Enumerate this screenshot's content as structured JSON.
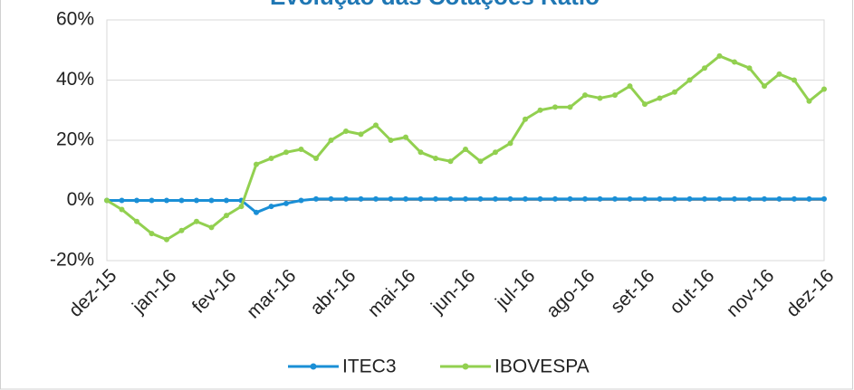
{
  "chart_data": {
    "type": "line",
    "title": "Evolução das Cotações Ratio",
    "categories": [
      "dez-15",
      null,
      null,
      null,
      "jan-16",
      null,
      null,
      null,
      "fev-16",
      null,
      null,
      null,
      "mar-16",
      null,
      null,
      null,
      "abr-16",
      null,
      null,
      null,
      "mai-16",
      null,
      null,
      null,
      "jun-16",
      null,
      null,
      null,
      "jul-16",
      null,
      null,
      null,
      "ago-16",
      null,
      null,
      null,
      "set-16",
      null,
      null,
      null,
      "out-16",
      null,
      null,
      null,
      "nov-16",
      null,
      null,
      null,
      "dez-16"
    ],
    "series": [
      {
        "name": "ITEC3",
        "color": "#1a8fd6",
        "values": [
          0,
          0,
          0,
          0,
          0,
          0,
          0,
          0,
          0,
          0,
          -4,
          -2,
          -1,
          0,
          0.5,
          0.5,
          0.5,
          0.5,
          0.5,
          0.5,
          0.5,
          0.5,
          0.5,
          0.5,
          0.5,
          0.5,
          0.5,
          0.5,
          0.5,
          0.5,
          0.5,
          0.5,
          0.5,
          0.5,
          0.5,
          0.5,
          0.5,
          0.5,
          0.5,
          0.5,
          0.5,
          0.5,
          0.5,
          0.5,
          0.5,
          0.5,
          0.5,
          0.5,
          0.5
        ]
      },
      {
        "name": "IBOVESPA",
        "color": "#92d050",
        "values": [
          0,
          -3,
          -7,
          -11,
          -13,
          -10,
          -7,
          -9,
          -5,
          -2,
          12,
          14,
          16,
          17,
          14,
          20,
          23,
          22,
          25,
          20,
          21,
          16,
          14,
          13,
          17,
          13,
          16,
          19,
          27,
          30,
          31,
          31,
          35,
          34,
          35,
          38,
          32,
          34,
          36,
          40,
          44,
          48,
          46,
          44,
          38,
          42,
          40,
          33,
          37
        ]
      }
    ],
    "ylim": [
      -20,
      60
    ],
    "yticks": [
      {
        "value": -20,
        "label": "-20%"
      },
      {
        "value": 0,
        "label": "0%"
      },
      {
        "value": 20,
        "label": "20%"
      },
      {
        "value": 40,
        "label": "40%"
      },
      {
        "value": 60,
        "label": "60%"
      }
    ],
    "grid": true
  }
}
